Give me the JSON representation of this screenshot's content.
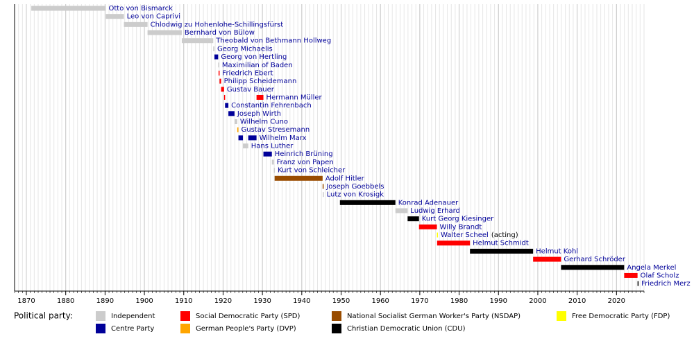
{
  "chart_data": {
    "type": "timeline",
    "xlim": [
      1867,
      2027
    ],
    "xticks": [
      1870,
      1880,
      1890,
      1900,
      1910,
      1920,
      1930,
      1940,
      1950,
      1960,
      1970,
      1980,
      1990,
      2000,
      2010,
      2020
    ],
    "grid": true,
    "legend_title": "Political party:",
    "parties": [
      {
        "name": "Independent",
        "color": "#cccccc"
      },
      {
        "name": "Social Democratic Party (SPD)",
        "color": "#ff0000"
      },
      {
        "name": "National Socialist German Worker's Party (NSDAP)",
        "color": "#994c00"
      },
      {
        "name": "Free Democratic Party (FDP)",
        "color": "#ffff00"
      },
      {
        "name": "Centre Party",
        "color": "#000099"
      },
      {
        "name": "German People's Party (DVP)",
        "color": "#ffa500"
      },
      {
        "name": "Christian Democratic Union (CDU)",
        "color": "#000000"
      }
    ],
    "chancellors": [
      {
        "name": "Otto von Bismarck",
        "party": 0,
        "terms": [
          [
            1871.25,
            1890.2
          ]
        ]
      },
      {
        "name": "Leo von Caprivi",
        "party": 0,
        "terms": [
          [
            1890.2,
            1894.8
          ]
        ]
      },
      {
        "name": "Chlodwig zu Hohenlohe-Schillingsfürst",
        "party": 0,
        "terms": [
          [
            1894.8,
            1900.8
          ]
        ]
      },
      {
        "name": "Bernhard von Bülow",
        "party": 0,
        "terms": [
          [
            1900.8,
            1909.5
          ]
        ]
      },
      {
        "name": "Theobald von Bethmann Hollweg",
        "party": 0,
        "terms": [
          [
            1909.5,
            1917.5
          ]
        ]
      },
      {
        "name": "Georg Michaelis",
        "party": 0,
        "terms": [
          [
            1917.5,
            1917.8
          ]
        ]
      },
      {
        "name": "Georg von Hertling",
        "party": 4,
        "terms": [
          [
            1917.8,
            1918.75
          ]
        ]
      },
      {
        "name": "Maximilian of Baden",
        "party": 0,
        "terms": [
          [
            1918.75,
            1918.85
          ]
        ]
      },
      {
        "name": "Friedrich Ebert",
        "party": 1,
        "terms": [
          [
            1918.85,
            1919.1
          ]
        ]
      },
      {
        "name": "Philipp Scheidemann",
        "party": 1,
        "terms": [
          [
            1919.1,
            1919.5
          ]
        ]
      },
      {
        "name": "Gustav Bauer",
        "party": 1,
        "terms": [
          [
            1919.5,
            1920.25
          ]
        ]
      },
      {
        "name": "Hermann Müller",
        "party": 1,
        "terms": [
          [
            1920.25,
            1920.45
          ],
          [
            1928.5,
            1930.25
          ]
        ]
      },
      {
        "name": "Constantin Fehrenbach",
        "party": 4,
        "terms": [
          [
            1920.5,
            1921.35
          ]
        ]
      },
      {
        "name": "Joseph Wirth",
        "party": 4,
        "terms": [
          [
            1921.35,
            1922.9
          ]
        ]
      },
      {
        "name": "Wilhelm Cuno",
        "party": 0,
        "terms": [
          [
            1922.9,
            1923.6
          ]
        ]
      },
      {
        "name": "Gustav Stresemann",
        "party": 5,
        "terms": [
          [
            1923.6,
            1923.9
          ]
        ]
      },
      {
        "name": "Wilhelm Marx",
        "party": 4,
        "terms": [
          [
            1923.9,
            1925.05
          ],
          [
            1926.4,
            1928.5
          ]
        ]
      },
      {
        "name": "Hans Luther",
        "party": 0,
        "terms": [
          [
            1925.05,
            1926.4
          ]
        ]
      },
      {
        "name": "Heinrich Brüning",
        "party": 4,
        "terms": [
          [
            1930.25,
            1932.4
          ]
        ]
      },
      {
        "name": "Franz von Papen",
        "party": 0,
        "terms": [
          [
            1932.4,
            1932.9
          ]
        ]
      },
      {
        "name": "Kurt von Schleicher",
        "party": 0,
        "terms": [
          [
            1932.9,
            1933.1
          ]
        ]
      },
      {
        "name": "Adolf Hitler",
        "party": 2,
        "terms": [
          [
            1933.1,
            1945.3
          ]
        ]
      },
      {
        "name": "Joseph Goebbels",
        "party": 2,
        "terms": [
          [
            1945.3,
            1945.35
          ]
        ]
      },
      {
        "name": "Lutz von Krosigk",
        "party": 0,
        "terms": [
          [
            1945.35,
            1945.4
          ]
        ]
      },
      {
        "name": "Konrad Adenauer",
        "party": 6,
        "terms": [
          [
            1949.7,
            1963.8
          ]
        ]
      },
      {
        "name": "Ludwig Erhard",
        "party": 0,
        "terms": [
          [
            1963.8,
            1966.9
          ]
        ]
      },
      {
        "name": "Kurt Georg Kiesinger",
        "party": 6,
        "terms": [
          [
            1966.9,
            1969.8
          ]
        ]
      },
      {
        "name": "Willy Brandt",
        "party": 1,
        "terms": [
          [
            1969.8,
            1974.35
          ]
        ]
      },
      {
        "name": "Walter Scheel",
        "note": "(acting)",
        "party": 3,
        "terms": [
          [
            1974.35,
            1974.4
          ]
        ]
      },
      {
        "name": "Helmut Schmidt",
        "party": 1,
        "terms": [
          [
            1974.4,
            1982.75
          ]
        ]
      },
      {
        "name": "Helmut Kohl",
        "party": 6,
        "terms": [
          [
            1982.75,
            1998.8
          ]
        ]
      },
      {
        "name": "Gerhard Schröder",
        "party": 1,
        "terms": [
          [
            1998.8,
            2005.9
          ]
        ]
      },
      {
        "name": "Angela Merkel",
        "party": 6,
        "terms": [
          [
            2005.9,
            2021.95
          ]
        ]
      },
      {
        "name": "Olaf Scholz",
        "party": 1,
        "terms": [
          [
            2021.95,
            2025.35
          ]
        ]
      },
      {
        "name": "Friedrich Merz",
        "party": 6,
        "terms": [
          [
            2025.35,
            2025.5
          ]
        ]
      }
    ]
  }
}
